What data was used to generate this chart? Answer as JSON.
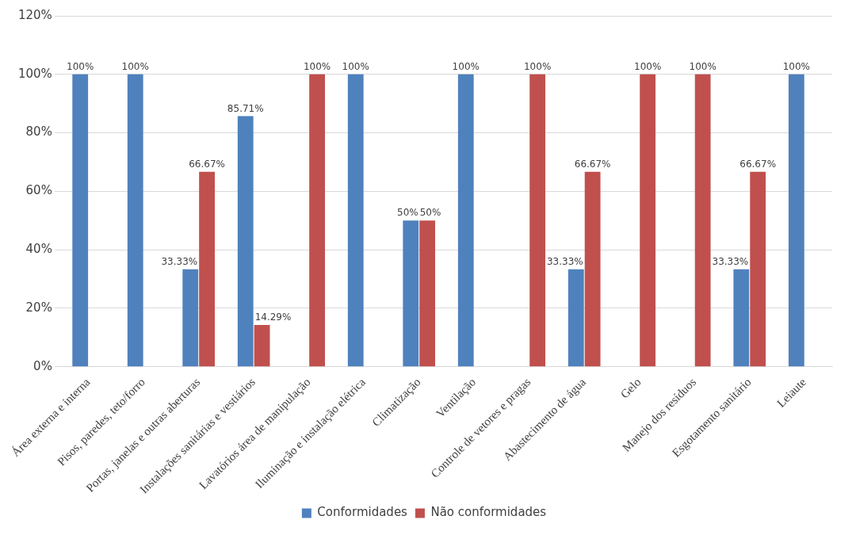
{
  "chart_data": {
    "type": "bar",
    "categories": [
      "Área externa e interna",
      "Pisos, paredes, teto/forro",
      "Portas, janelas e outras aberturas",
      "Instalações sanitárias e vestiários",
      "Lavatórios área de manipulação",
      "Iluminação e instalação elétrica",
      "Climatização",
      "Ventilação",
      "Controle de vetores e pragas",
      "Abastecimento de água",
      "Gelo",
      "Manejo dos resíduos",
      "Esgotamento sanitário",
      "Leiaute"
    ],
    "series": [
      {
        "name": "Conformidades",
        "color": "#4f81bd",
        "values": [
          100,
          100,
          33.33,
          85.71,
          null,
          100,
          50,
          100,
          null,
          33.33,
          null,
          null,
          33.33,
          100
        ],
        "value_labels": [
          "100%",
          "100%",
          "33.33%",
          "85.71%",
          null,
          "100%",
          "50%",
          "100%",
          null,
          "33.33%",
          null,
          null,
          "33.33%",
          "100%"
        ]
      },
      {
        "name": "Não conformidades",
        "color": "#c0504d",
        "values": [
          null,
          null,
          66.67,
          14.29,
          100,
          null,
          50,
          null,
          100,
          66.67,
          100,
          100,
          66.67,
          null
        ],
        "value_labels": [
          null,
          null,
          "66.67%",
          "14.29%",
          "100%",
          null,
          "50%",
          null,
          "100%",
          "66.67%",
          "100%",
          "100%",
          "66.67%",
          null
        ]
      }
    ],
    "ylim": [
      0,
      120
    ],
    "yticks": [
      {
        "value": 0,
        "label": "0%"
      },
      {
        "value": 20,
        "label": "20%"
      },
      {
        "value": 40,
        "label": "40%"
      },
      {
        "value": 60,
        "label": "60%"
      },
      {
        "value": 80,
        "label": "80%"
      },
      {
        "value": 100,
        "label": "100%"
      },
      {
        "value": 120,
        "label": "120%"
      }
    ],
    "grid": "y",
    "legend": "bottom"
  }
}
